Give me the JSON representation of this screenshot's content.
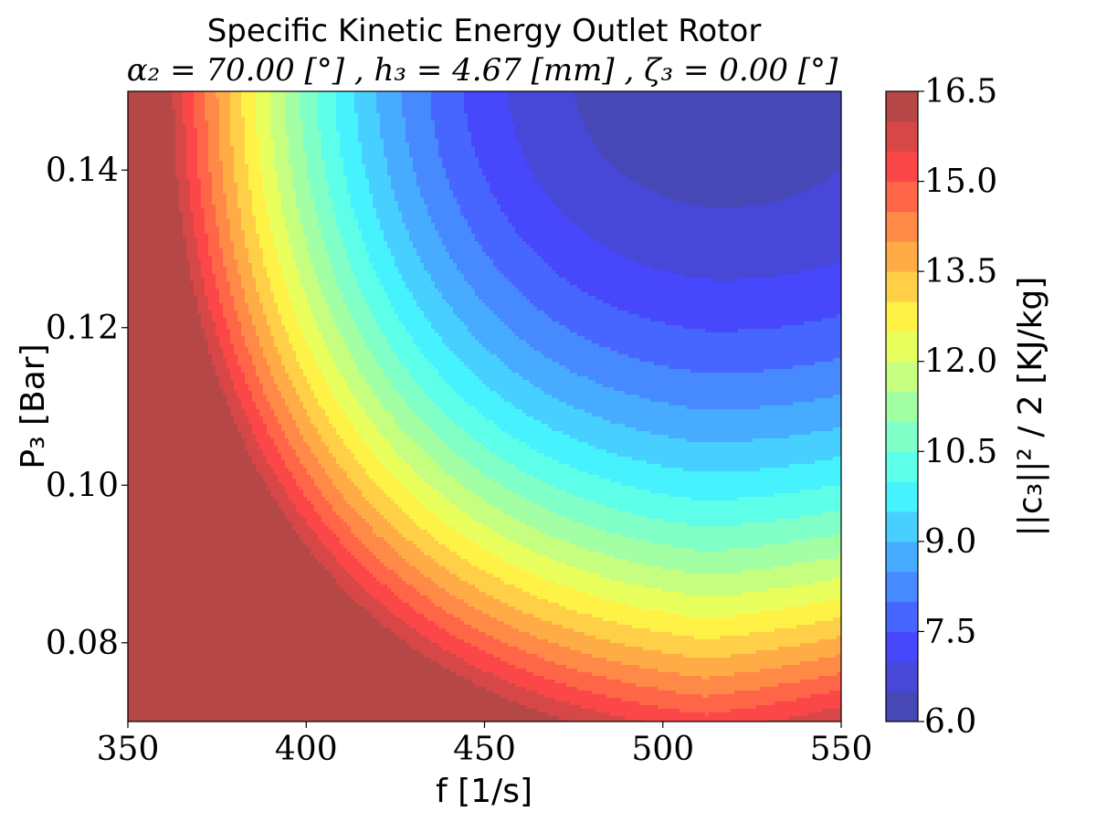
{
  "chart_data": {
    "type": "contour",
    "title": "Specific Kinetic Energy Outlet Rotor",
    "subtitle": {
      "alpha_label": "α₂ = 70.00 [°]",
      "h_label": "h₃ = 4.67 [mm]",
      "zeta_label": "ζ₃ = 0.00 [°]",
      "separator": " , "
    },
    "xlabel": "f  [1/s]",
    "ylabel": "P₃ [Bar]",
    "colorbar_label": "||c₃||² / 2  [KJ/kg]",
    "xlim": [
      350,
      550
    ],
    "ylim": [
      0.07,
      0.15
    ],
    "clim": [
      6.0,
      16.5
    ],
    "x_ticks": [
      "350",
      "400",
      "450",
      "500",
      "550"
    ],
    "y_ticks": [
      "0.08",
      "0.10",
      "0.12",
      "0.14"
    ],
    "colorbar_ticks": [
      "6.0",
      "7.5",
      "9.0",
      "10.5",
      "12.0",
      "13.5",
      "15.0",
      "16.5"
    ],
    "levels": [
      6.0,
      6.5,
      7.0,
      7.5,
      8.0,
      8.5,
      9.0,
      9.5,
      10.0,
      10.5,
      11.0,
      11.5,
      12.0,
      12.5,
      13.0,
      13.5,
      14.0,
      14.5,
      15.0,
      15.5,
      16.0,
      16.5
    ],
    "colormap": "jet",
    "minimum": {
      "f": 512,
      "P3": 0.15,
      "value": 6.2
    },
    "grid": false
  }
}
